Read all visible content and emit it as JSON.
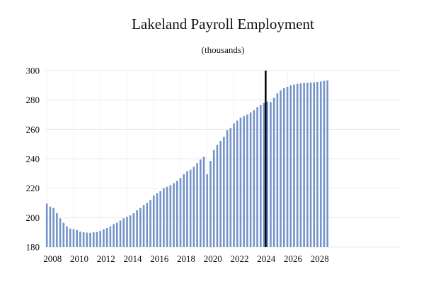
{
  "chart_data": {
    "type": "bar",
    "title": "Lakeland Payroll Employment",
    "subtitle": "(thousands)",
    "xlabel": "",
    "ylabel": "",
    "ylim": [
      180,
      300
    ],
    "yticks": [
      180,
      200,
      220,
      240,
      260,
      280,
      300
    ],
    "xtick_labels": [
      "2008",
      "2010",
      "2012",
      "2014",
      "2016",
      "2018",
      "2020",
      "2022",
      "2024",
      "2026",
      "2028"
    ],
    "x_start": "2008Q1",
    "frequency": "quarterly",
    "forecast_start": "2024Q3",
    "grid": true,
    "bar_color": "#7393c9",
    "divider_color": "#000000",
    "values": [
      209.5,
      207.5,
      206.5,
      203.0,
      199.5,
      196.5,
      194.0,
      192.5,
      192.0,
      191.5,
      190.5,
      190.0,
      189.8,
      189.7,
      190.0,
      190.2,
      191.0,
      192.0,
      193.0,
      194.0,
      195.5,
      196.5,
      198.0,
      199.5,
      200.5,
      201.5,
      203.0,
      205.0,
      206.5,
      208.5,
      210.0,
      212.0,
      215.0,
      216.5,
      218.0,
      220.0,
      221.0,
      222.0,
      223.5,
      225.0,
      227.0,
      229.5,
      231.5,
      232.5,
      234.5,
      237.0,
      239.5,
      241.5,
      229.5,
      238.5,
      246.0,
      249.5,
      252.0,
      255.0,
      259.5,
      261.0,
      264.0,
      266.0,
      268.0,
      269.0,
      270.0,
      271.5,
      273.0,
      275.0,
      276.5,
      278.0,
      279.0,
      278.5,
      281.5,
      284.5,
      286.5,
      288.0,
      289.0,
      290.0,
      290.5,
      291.0,
      291.3,
      291.5,
      291.7,
      291.8,
      292.0,
      292.3,
      292.6,
      293.0,
      293.3
    ]
  }
}
